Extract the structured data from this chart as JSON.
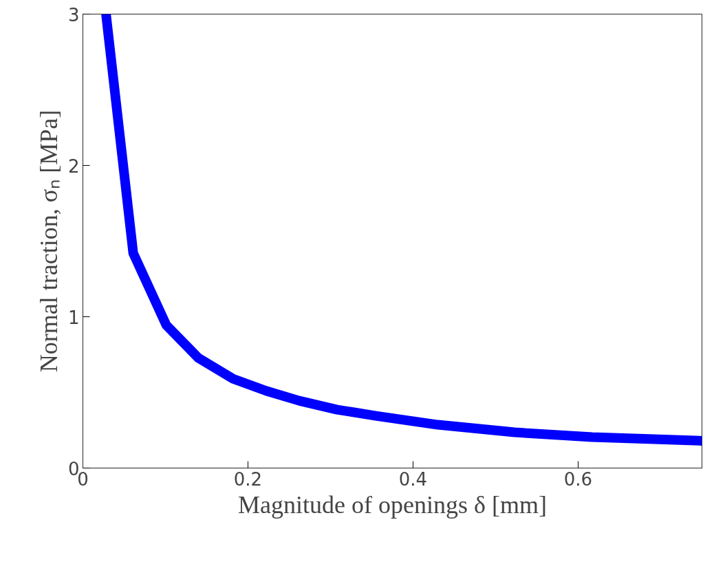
{
  "chart_data": {
    "type": "line",
    "xlabel": "Magnitude of openings δ [mm]",
    "ylabel": "Normal traction, σₙ [MPa]",
    "xlim": [
      0,
      0.75
    ],
    "ylim": [
      0,
      3
    ],
    "xticks": [
      0,
      0.2,
      0.4,
      0.6
    ],
    "yticks": [
      0,
      1,
      2,
      3
    ],
    "grid": false,
    "line_style": "solid",
    "series": [
      {
        "color": "#0000ff",
        "x": [
          0.028,
          0.061,
          0.101,
          0.14,
          0.182,
          0.222,
          0.262,
          0.308,
          0.355,
          0.43,
          0.523,
          0.617,
          0.75
        ],
        "values": [
          3.0,
          1.42,
          0.945,
          0.727,
          0.59,
          0.51,
          0.445,
          0.386,
          0.345,
          0.286,
          0.236,
          0.205,
          0.18
        ]
      }
    ]
  }
}
